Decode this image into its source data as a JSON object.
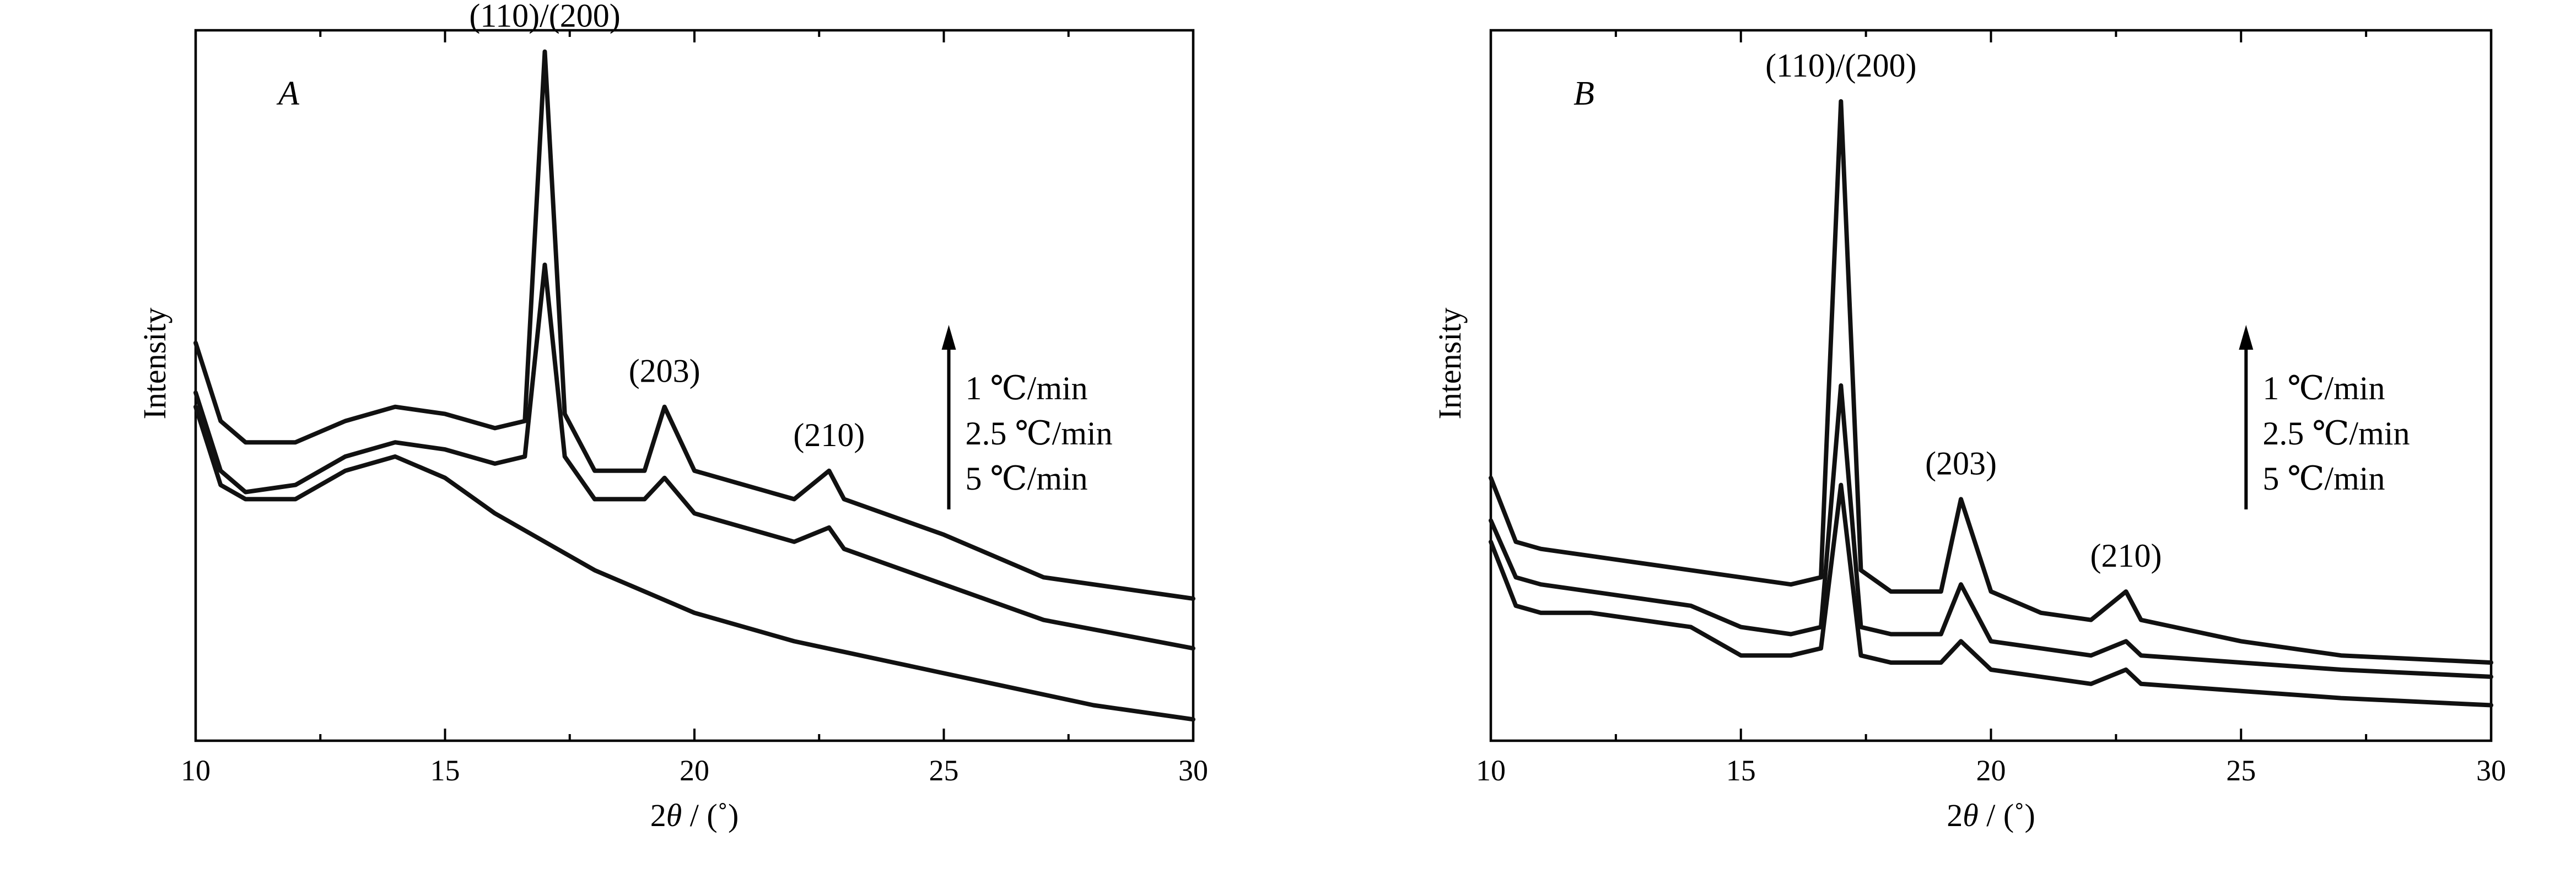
{
  "chart_data": [
    {
      "type": "line",
      "panel_label": "A",
      "xlabel_main": "2",
      "xlabel_theta": "θ",
      "xlabel_unit": " / (˚)",
      "ylabel": "Intensity",
      "xlim": [
        10,
        30
      ],
      "x_ticks": [
        10,
        15,
        20,
        25,
        30
      ],
      "y_ticks_shown": false,
      "grid": false,
      "peak_labels": [
        {
          "text": "(110)/(200)",
          "x": 17.0
        },
        {
          "text": "(203)",
          "x": 19.4
        },
        {
          "text": "(210)",
          "x": 22.7
        }
      ],
      "legend_order": [
        "1 ℃/min",
        "2.5 ℃/min",
        "5 ℃/min"
      ],
      "series": [
        {
          "name": "1 ℃/min",
          "x": [
            10,
            10.5,
            11,
            12,
            13,
            14,
            15,
            16,
            16.6,
            17.0,
            17.4,
            18,
            19,
            19.4,
            20,
            21,
            22,
            22.7,
            23,
            25,
            27,
            30
          ],
          "y": [
            0.56,
            0.45,
            0.42,
            0.42,
            0.45,
            0.47,
            0.46,
            0.44,
            0.45,
            0.97,
            0.46,
            0.38,
            0.38,
            0.47,
            0.38,
            0.36,
            0.34,
            0.38,
            0.34,
            0.29,
            0.23,
            0.2
          ]
        },
        {
          "name": "2.5 ℃/min",
          "x": [
            10,
            10.5,
            11,
            12,
            13,
            14,
            15,
            16,
            16.6,
            17.0,
            17.4,
            18,
            19,
            19.4,
            20,
            21,
            22,
            22.7,
            23,
            25,
            27,
            30
          ],
          "y": [
            0.49,
            0.38,
            0.35,
            0.36,
            0.4,
            0.42,
            0.41,
            0.39,
            0.4,
            0.67,
            0.4,
            0.34,
            0.34,
            0.37,
            0.32,
            0.3,
            0.28,
            0.3,
            0.27,
            0.22,
            0.17,
            0.13
          ]
        },
        {
          "name": "5 ℃/min",
          "x": [
            10,
            10.5,
            11,
            12,
            13,
            14,
            15,
            16,
            17,
            18,
            19,
            20,
            22,
            24,
            26,
            28,
            30
          ],
          "y": [
            0.47,
            0.36,
            0.34,
            0.34,
            0.38,
            0.4,
            0.37,
            0.32,
            0.28,
            0.24,
            0.21,
            0.18,
            0.14,
            0.11,
            0.08,
            0.05,
            0.03
          ]
        }
      ]
    },
    {
      "type": "line",
      "panel_label": "B",
      "xlabel_main": "2",
      "xlabel_theta": "θ",
      "xlabel_unit": " / (˚)",
      "ylabel": "Intensity",
      "xlim": [
        10,
        30
      ],
      "x_ticks": [
        10,
        15,
        20,
        25,
        30
      ],
      "y_ticks_shown": false,
      "grid": false,
      "peak_labels": [
        {
          "text": "(110)/(200)",
          "x": 17.0
        },
        {
          "text": "(203)",
          "x": 19.4
        },
        {
          "text": "(210)",
          "x": 22.7
        }
      ],
      "legend_order": [
        "1 ℃/min",
        "2.5 ℃/min",
        "5 ℃/min"
      ],
      "series": [
        {
          "name": "1 ℃/min",
          "x": [
            10,
            10.5,
            11,
            12,
            13,
            14,
            15,
            16,
            16.6,
            17.0,
            17.4,
            18,
            19,
            19.4,
            20,
            21,
            22,
            22.7,
            23,
            25,
            27,
            30
          ],
          "y": [
            0.37,
            0.28,
            0.27,
            0.26,
            0.25,
            0.24,
            0.23,
            0.22,
            0.23,
            0.9,
            0.24,
            0.21,
            0.21,
            0.34,
            0.21,
            0.18,
            0.17,
            0.21,
            0.17,
            0.14,
            0.12,
            0.11
          ]
        },
        {
          "name": "2.5 ℃/min",
          "x": [
            10,
            10.5,
            11,
            12,
            13,
            14,
            15,
            16,
            16.6,
            17.0,
            17.4,
            18,
            19,
            19.4,
            20,
            21,
            22,
            22.7,
            23,
            25,
            27,
            30
          ],
          "y": [
            0.31,
            0.23,
            0.22,
            0.21,
            0.2,
            0.19,
            0.16,
            0.15,
            0.16,
            0.5,
            0.16,
            0.15,
            0.15,
            0.22,
            0.14,
            0.13,
            0.12,
            0.14,
            0.12,
            0.11,
            0.1,
            0.09
          ]
        },
        {
          "name": "5 ℃/min",
          "x": [
            10,
            10.5,
            11,
            12,
            13,
            14,
            15,
            16,
            16.6,
            17.0,
            17.4,
            18,
            19,
            19.4,
            20,
            21,
            22,
            22.7,
            23,
            25,
            27,
            30
          ],
          "y": [
            0.28,
            0.19,
            0.18,
            0.18,
            0.17,
            0.16,
            0.12,
            0.12,
            0.13,
            0.36,
            0.12,
            0.11,
            0.11,
            0.14,
            0.1,
            0.09,
            0.08,
            0.1,
            0.08,
            0.07,
            0.06,
            0.05
          ]
        }
      ]
    }
  ]
}
